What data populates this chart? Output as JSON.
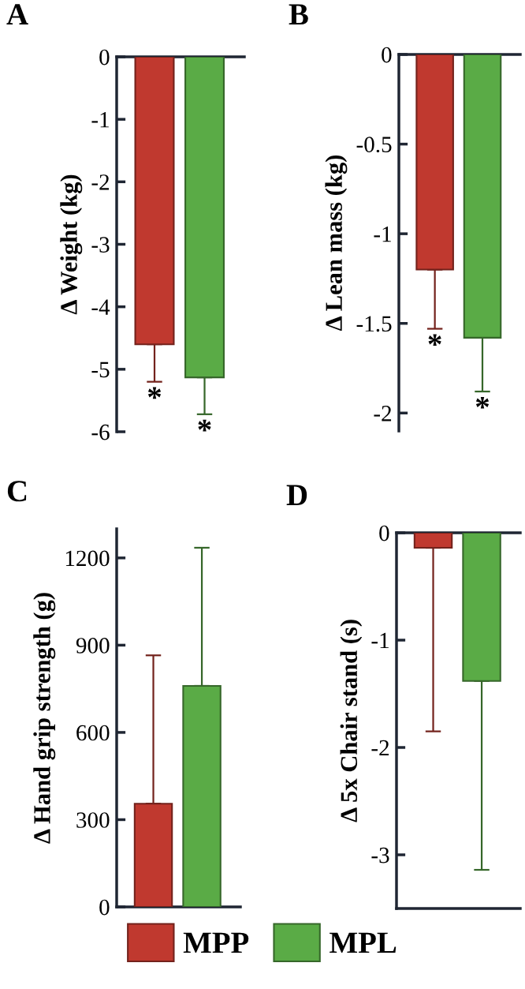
{
  "chart_data": [
    {
      "type": "bar",
      "title": "A",
      "ylabel": "Δ Weight (kg)",
      "categories": [
        null,
        null
      ],
      "ylim": [
        -6,
        0
      ],
      "yticks": [
        0,
        -1,
        -2,
        -3,
        -4,
        -5,
        -6
      ],
      "tick_labels": "y",
      "legend": "bottom",
      "series": [
        {
          "name": "MPP",
          "color": "#c0392f",
          "values": [
            -4.6,
            null
          ],
          "errors": [
            [
              -5.2,
              -4.6
            ],
            null
          ]
        },
        {
          "name": "MPL",
          "color": "#5aab46",
          "values": [
            null,
            -5.13
          ],
          "errors": [
            null,
            [
              -5.72,
              -5.13
            ]
          ]
        }
      ],
      "annotations": [
        "*",
        "*"
      ]
    },
    {
      "type": "bar",
      "title": "B",
      "ylabel": "Δ Lean mass (kg)",
      "categories": [
        null,
        null
      ],
      "ylim": [
        -2.1,
        0
      ],
      "yticks": [
        0,
        -0.5,
        -1,
        -1.5,
        -2
      ],
      "tick_labels": "y",
      "legend": "bottom",
      "series": [
        {
          "name": "MPP",
          "color": "#c0392f",
          "values": [
            -1.2,
            null
          ],
          "errors": [
            [
              -1.53,
              -1.2
            ],
            null
          ]
        },
        {
          "name": "MPL",
          "color": "#5aab46",
          "values": [
            null,
            -1.58
          ],
          "errors": [
            null,
            [
              -1.88,
              -1.58
            ]
          ]
        }
      ],
      "annotations": [
        "*",
        "*"
      ]
    },
    {
      "type": "bar",
      "title": "C",
      "ylabel": "Δ Hand grip strength (g)",
      "categories": [
        null,
        null
      ],
      "ylim": [
        0,
        1300
      ],
      "yticks": [
        0,
        300,
        600,
        900,
        1200
      ],
      "tick_labels": "y",
      "legend": "bottom",
      "series": [
        {
          "name": "MPP",
          "color": "#c0392f",
          "values": [
            355,
            null
          ],
          "errors": [
            [
              355,
              865
            ],
            null
          ]
        },
        {
          "name": "MPL",
          "color": "#5aab46",
          "values": [
            null,
            760
          ],
          "errors": [
            null,
            [
              760,
              1235
            ]
          ]
        }
      ]
    },
    {
      "type": "bar",
      "title": "D",
      "ylabel": "Δ 5x Chair stand (s)",
      "categories": [
        null,
        null
      ],
      "ylim": [
        -3.5,
        0
      ],
      "yticks": [
        0,
        -1,
        -2,
        -3
      ],
      "tick_labels": "y",
      "legend": "bottom",
      "series": [
        {
          "name": "MPP",
          "color": "#c0392f",
          "values": [
            -0.14,
            null
          ],
          "errors": [
            [
              -1.85,
              -0.14
            ],
            null
          ]
        },
        {
          "name": "MPL",
          "color": "#5aab46",
          "values": [
            null,
            -1.38
          ],
          "errors": [
            null,
            [
              -3.14,
              -1.38
            ]
          ]
        }
      ]
    }
  ]
}
